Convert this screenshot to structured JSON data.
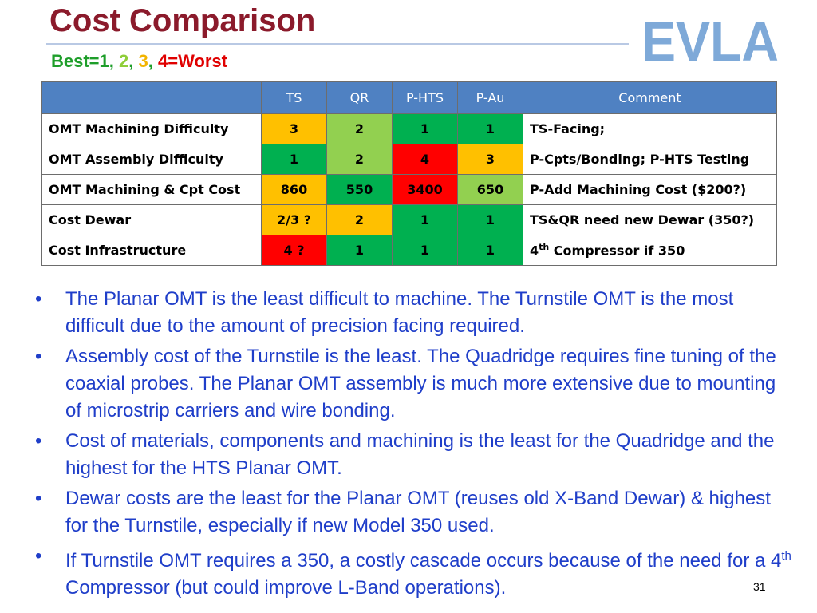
{
  "title": "Cost Comparison",
  "subtitle": {
    "best": "Best=1",
    "sep1": ", ",
    "two": "2",
    "sep2": ", ",
    "three": "3",
    "sep3": ", ",
    "worst": "4=Worst",
    "colors": {
      "best": "#1e9e2a",
      "two": "#8fce3a",
      "three": "#f2b400",
      "worst": "#e00000"
    }
  },
  "logo": {
    "text": "EVLA",
    "color": "#7ea9d8"
  },
  "table": {
    "headers": [
      "",
      "TS",
      "QR",
      "P-HTS",
      "P-Au",
      "Comment"
    ],
    "rows": [
      {
        "label": "OMT Machining Difficulty",
        "scores": [
          {
            "value": "3",
            "color": "#ffc000"
          },
          {
            "value": "2",
            "color": "#92d050"
          },
          {
            "value": "1",
            "color": "#00b050"
          },
          {
            "value": "1",
            "color": "#00b050"
          }
        ],
        "comment": "TS-Facing;"
      },
      {
        "label": "OMT Assembly Difficulty",
        "scores": [
          {
            "value": "1",
            "color": "#00b050"
          },
          {
            "value": "2",
            "color": "#92d050"
          },
          {
            "value": "4",
            "color": "#ff0000"
          },
          {
            "value": "3",
            "color": "#ffc000"
          }
        ],
        "comment": "P-Cpts/Bonding; P-HTS Testing"
      },
      {
        "label": "OMT Machining & Cpt Cost",
        "scores": [
          {
            "value": "860",
            "color": "#ffc000"
          },
          {
            "value": "550",
            "color": "#00b050"
          },
          {
            "value": "3400",
            "color": "#ff0000"
          },
          {
            "value": "650",
            "color": "#92d050"
          }
        ],
        "comment": "P-Add  Machining Cost ($200?)"
      },
      {
        "label": "Cost Dewar",
        "scores": [
          {
            "value": "2/3 ?",
            "color": "#ffc000"
          },
          {
            "value": "2",
            "color": "#ffc000"
          },
          {
            "value": "1",
            "color": "#00b050"
          },
          {
            "value": "1",
            "color": "#00b050"
          }
        ],
        "comment": "TS&QR need new Dewar (350?)"
      },
      {
        "label": "Cost Infrastructure",
        "scores": [
          {
            "value": "4 ?",
            "color": "#ff0000"
          },
          {
            "value": "1",
            "color": "#00b050"
          },
          {
            "value": "1",
            "color": "#00b050"
          },
          {
            "value": "1",
            "color": "#00b050"
          }
        ],
        "comment_pre": "4",
        "comment_sup": "th",
        "comment_post": " Compressor if 350"
      }
    ]
  },
  "bullets": [
    {
      "text": "The Planar OMT is the least difficult to machine. The Turnstile OMT is the most difficult due to the amount of precision facing required."
    },
    {
      "text": "Assembly cost of the Turnstile is the least. The Quadridge requires fine tuning of the coaxial probes. The Planar OMT assembly is much more extensive due to mounting of microstrip carriers and wire bonding."
    },
    {
      "text": "Cost of materials, components and machining is the least for the Quadridge and the highest for the HTS Planar OMT."
    },
    {
      "text": "Dewar costs are the least for the Planar OMT (reuses old X-Band Dewar) & highest for the Turnstile, especially if new Model 350 used."
    },
    {
      "pre": "If Turnstile OMT requires a 350, a costly cascade occurs because of the need for a 4",
      "sup": "th",
      "post": " Compressor (but could improve L-Band operations)."
    }
  ],
  "bullet_glyph": "•",
  "page_number": "31"
}
